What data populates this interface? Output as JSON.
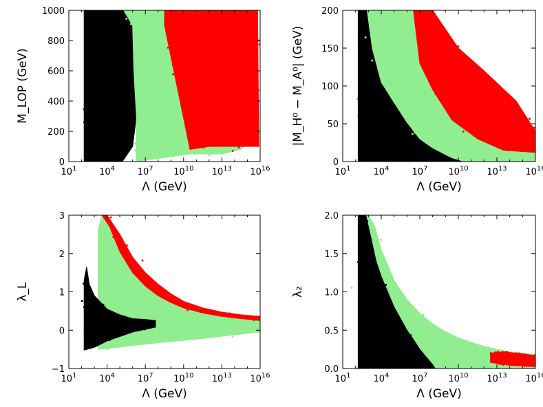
{
  "colors": {
    "black_region": "#000000",
    "green_region": "#90ee90",
    "red_region": "#ff0000"
  },
  "chart_data": [
    {
      "type": "scatter",
      "xlabel": "Λ (GeV)",
      "ylabel": "M_LOP (GeV)",
      "xscale": "log",
      "xlim_exp": [
        1,
        16
      ],
      "ylim": [
        0,
        1000
      ],
      "xticks": [
        {
          "base": "10",
          "exp": "1"
        },
        {
          "base": "10",
          "exp": "4"
        },
        {
          "base": "10",
          "exp": "7"
        },
        {
          "base": "10",
          "exp": "10"
        },
        {
          "base": "10",
          "exp": "13"
        },
        {
          "base": "10",
          "exp": "16"
        }
      ],
      "yticks": [
        "0",
        "200",
        "400",
        "600",
        "800",
        "1000"
      ],
      "series": [
        {
          "color": "black",
          "points": [
            [
              2.2,
              0
            ],
            [
              2.2,
              1000
            ],
            [
              3.5,
              1000
            ],
            [
              4.5,
              1000
            ],
            [
              5.3,
              1000
            ],
            [
              6.0,
              900
            ],
            [
              6.1,
              600
            ],
            [
              6.3,
              300
            ],
            [
              6.0,
              100
            ],
            [
              5.2,
              0
            ]
          ]
        },
        {
          "color": "green",
          "points": [
            [
              5.3,
              1000
            ],
            [
              9.5,
              1000
            ],
            [
              11.5,
              950
            ],
            [
              13.5,
              900
            ],
            [
              15.6,
              800
            ],
            [
              15.8,
              200
            ],
            [
              14.5,
              80
            ],
            [
              13.0,
              50
            ],
            [
              10.5,
              50
            ],
            [
              6.3,
              0
            ],
            [
              6.3,
              300
            ],
            [
              6.1,
              600
            ],
            [
              6.0,
              900
            ]
          ]
        },
        {
          "color": "red",
          "points": [
            [
              8.5,
              1000
            ],
            [
              15.8,
              1000
            ],
            [
              15.9,
              100
            ],
            [
              12.0,
              100
            ],
            [
              10.5,
              80
            ],
            [
              8.5,
              900
            ]
          ]
        }
      ]
    },
    {
      "type": "scatter",
      "xlabel": "Λ (GeV)",
      "ylabel": "|M_H⁰ − M_A⁰| (GeV)",
      "xscale": "log",
      "xlim_exp": [
        1,
        16
      ],
      "ylim": [
        0,
        200
      ],
      "xticks": [
        {
          "base": "10",
          "exp": "1"
        },
        {
          "base": "10",
          "exp": "4"
        },
        {
          "base": "10",
          "exp": "7"
        },
        {
          "base": "10",
          "exp": "10"
        },
        {
          "base": "10",
          "exp": "13"
        },
        {
          "base": "10",
          "exp": "16"
        }
      ],
      "yticks": [
        "0",
        "50",
        "100",
        "150",
        "200"
      ],
      "series": [
        {
          "color": "black",
          "points": [
            [
              2.2,
              0
            ],
            [
              2.2,
              200
            ],
            [
              2.9,
              200
            ],
            [
              3.3,
              150
            ],
            [
              4.0,
              105
            ],
            [
              5.0,
              78
            ],
            [
              6.0,
              52
            ],
            [
              7.0,
              30
            ],
            [
              8.0,
              18
            ],
            [
              9.5,
              5
            ],
            [
              10.5,
              0
            ]
          ]
        },
        {
          "color": "green",
          "points": [
            [
              2.9,
              200
            ],
            [
              7.5,
              200
            ],
            [
              9.0,
              165
            ],
            [
              10.5,
              135
            ],
            [
              12.5,
              95
            ],
            [
              14.0,
              70
            ],
            [
              15.5,
              48
            ],
            [
              16.0,
              38
            ],
            [
              16.0,
              0
            ],
            [
              10.5,
              0
            ],
            [
              9.5,
              5
            ],
            [
              8.0,
              18
            ],
            [
              7.0,
              30
            ],
            [
              6.0,
              52
            ],
            [
              5.0,
              78
            ],
            [
              4.0,
              105
            ],
            [
              3.3,
              150
            ]
          ]
        },
        {
          "color": "red",
          "points": [
            [
              6.5,
              200
            ],
            [
              8.0,
              200
            ],
            [
              10.0,
              150
            ],
            [
              12.0,
              120
            ],
            [
              14.5,
              80
            ],
            [
              16.0,
              40
            ],
            [
              16.0,
              12
            ],
            [
              13.5,
              15
            ],
            [
              11.5,
              30
            ],
            [
              9.5,
              55
            ],
            [
              8.0,
              95
            ],
            [
              7.0,
              130
            ]
          ]
        }
      ]
    },
    {
      "type": "scatter",
      "xlabel": "Λ (GeV)",
      "ylabel": "λ_L",
      "xscale": "log",
      "xlim_exp": [
        1,
        16
      ],
      "ylim": [
        -1,
        3
      ],
      "xticks": [
        {
          "base": "10",
          "exp": "1"
        },
        {
          "base": "10",
          "exp": "4"
        },
        {
          "base": "10",
          "exp": "7"
        },
        {
          "base": "10",
          "exp": "10"
        },
        {
          "base": "10",
          "exp": "13"
        },
        {
          "base": "10",
          "exp": "16"
        }
      ],
      "yticks": [
        "−1",
        "0",
        "1",
        "2",
        "3"
      ],
      "series": [
        {
          "color": "green",
          "points": [
            [
              3.3,
              2.6
            ],
            [
              3.6,
              3.0
            ],
            [
              4.0,
              2.85
            ],
            [
              5.0,
              2.1
            ],
            [
              6.0,
              1.6
            ],
            [
              7.0,
              1.3
            ],
            [
              8.0,
              1.05
            ],
            [
              9.0,
              0.85
            ],
            [
              10.0,
              0.7
            ],
            [
              11.5,
              0.55
            ],
            [
              13.0,
              0.45
            ],
            [
              14.5,
              0.38
            ],
            [
              16.0,
              0.3
            ],
            [
              16.0,
              -0.05
            ],
            [
              14.0,
              -0.12
            ],
            [
              12.0,
              -0.2
            ],
            [
              10.0,
              -0.27
            ],
            [
              8.0,
              -0.33
            ],
            [
              6.0,
              -0.4
            ],
            [
              4.0,
              -0.48
            ],
            [
              3.3,
              -0.5
            ]
          ]
        },
        {
          "color": "red",
          "points": [
            [
              3.6,
              3.0
            ],
            [
              4.0,
              3.0
            ],
            [
              5.0,
              2.5
            ],
            [
              6.0,
              1.9
            ],
            [
              7.0,
              1.5
            ],
            [
              8.0,
              1.2
            ],
            [
              9.0,
              0.95
            ],
            [
              10.0,
              0.75
            ],
            [
              11.5,
              0.58
            ],
            [
              13.0,
              0.47
            ],
            [
              14.5,
              0.4
            ],
            [
              16.0,
              0.36
            ],
            [
              16.0,
              0.25
            ],
            [
              14.5,
              0.3
            ],
            [
              13.0,
              0.36
            ],
            [
              11.5,
              0.45
            ],
            [
              10.0,
              0.58
            ],
            [
              9.0,
              0.72
            ],
            [
              8.0,
              0.9
            ],
            [
              7.0,
              1.15
            ],
            [
              6.0,
              1.5
            ],
            [
              5.0,
              2.05
            ],
            [
              4.2,
              2.7
            ]
          ]
        },
        {
          "color": "black",
          "points": [
            [
              2.2,
              -0.52
            ],
            [
              2.2,
              1.3
            ],
            [
              2.4,
              1.65
            ],
            [
              2.6,
              1.2
            ],
            [
              3.0,
              0.9
            ],
            [
              4.0,
              0.55
            ],
            [
              5.0,
              0.4
            ],
            [
              6.0,
              0.3
            ],
            [
              7.0,
              0.28
            ],
            [
              7.8,
              0.25
            ],
            [
              7.8,
              0.08
            ],
            [
              6.0,
              -0.05
            ],
            [
              4.0,
              -0.28
            ],
            [
              3.0,
              -0.45
            ]
          ]
        }
      ]
    },
    {
      "type": "scatter",
      "xlabel": "Λ (GeV)",
      "ylabel": "λ₂",
      "xscale": "log",
      "xlim_exp": [
        1,
        16
      ],
      "ylim": [
        0,
        2
      ],
      "xticks": [
        {
          "base": "10",
          "exp": "1"
        },
        {
          "base": "10",
          "exp": "4"
        },
        {
          "base": "10",
          "exp": "7"
        },
        {
          "base": "10",
          "exp": "10"
        },
        {
          "base": "10",
          "exp": "13"
        },
        {
          "base": "10",
          "exp": "16"
        }
      ],
      "yticks": [
        "0.0",
        "0.5",
        "1.0",
        "1.5",
        "2.0"
      ],
      "series": [
        {
          "color": "green",
          "points": [
            [
              2.2,
              0
            ],
            [
              2.2,
              2.0
            ],
            [
              3.0,
              2.0
            ],
            [
              3.5,
              1.85
            ],
            [
              4.0,
              1.55
            ],
            [
              5.0,
              1.15
            ],
            [
              6.0,
              0.9
            ],
            [
              7.0,
              0.72
            ],
            [
              8.0,
              0.58
            ],
            [
              9.0,
              0.48
            ],
            [
              10.0,
              0.4
            ],
            [
              11.0,
              0.34
            ],
            [
              12.0,
              0.29
            ],
            [
              13.0,
              0.25
            ],
            [
              14.0,
              0.22
            ],
            [
              15.0,
              0.2
            ],
            [
              16.0,
              0.18
            ],
            [
              16.0,
              0
            ]
          ]
        },
        {
          "color": "black",
          "points": [
            [
              2.2,
              0
            ],
            [
              2.2,
              2.0
            ],
            [
              2.8,
              2.0
            ],
            [
              3.2,
              1.7
            ],
            [
              3.6,
              1.4
            ],
            [
              4.0,
              1.2
            ],
            [
              4.5,
              1.0
            ],
            [
              5.0,
              0.8
            ],
            [
              5.5,
              0.65
            ],
            [
              6.0,
              0.5
            ],
            [
              6.5,
              0.38
            ],
            [
              7.0,
              0.25
            ],
            [
              7.5,
              0.15
            ],
            [
              8.0,
              0.05
            ],
            [
              8.2,
              0
            ]
          ]
        },
        {
          "color": "red",
          "points": [
            [
              12.5,
              0.2
            ],
            [
              13.5,
              0.22
            ],
            [
              14.5,
              0.2
            ],
            [
              16.0,
              0.17
            ],
            [
              16.0,
              0.03
            ],
            [
              14.0,
              0.04
            ],
            [
              12.5,
              0.08
            ]
          ]
        }
      ]
    }
  ]
}
